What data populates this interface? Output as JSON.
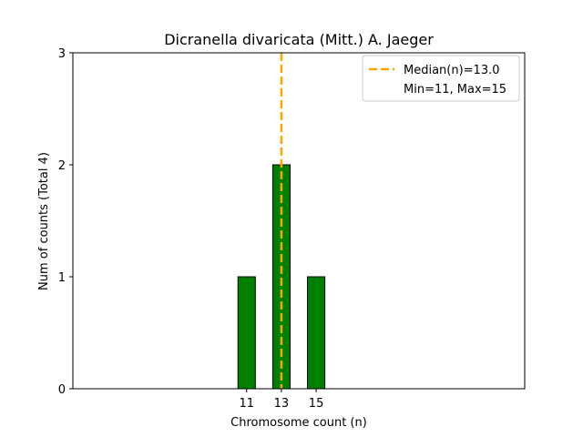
{
  "chart_data": {
    "type": "bar",
    "title": "Dicranella divaricata (Mitt.) A. Jaeger",
    "xlabel": "Chromosome count (n)",
    "ylabel": "Num of counts     (Total 4)",
    "categories": [
      11,
      13,
      15
    ],
    "values": [
      1,
      2,
      1
    ],
    "xticks": [
      "11",
      "13",
      "15"
    ],
    "yticks": [
      "0",
      "1",
      "2",
      "3"
    ],
    "ylim": [
      0,
      3
    ],
    "xlim": [
      1,
      27
    ],
    "bar_width": 1,
    "bar_color": "#008000",
    "bar_edge_color": "#000000",
    "grid": false,
    "median": {
      "value": 13.0,
      "label": "Median(n)=13.0",
      "color": "#ffa500",
      "style": "dashed"
    },
    "legend": {
      "placement": "top-right",
      "entries": [
        "Median(n)=13.0",
        "Min=11, Max=15"
      ]
    }
  }
}
